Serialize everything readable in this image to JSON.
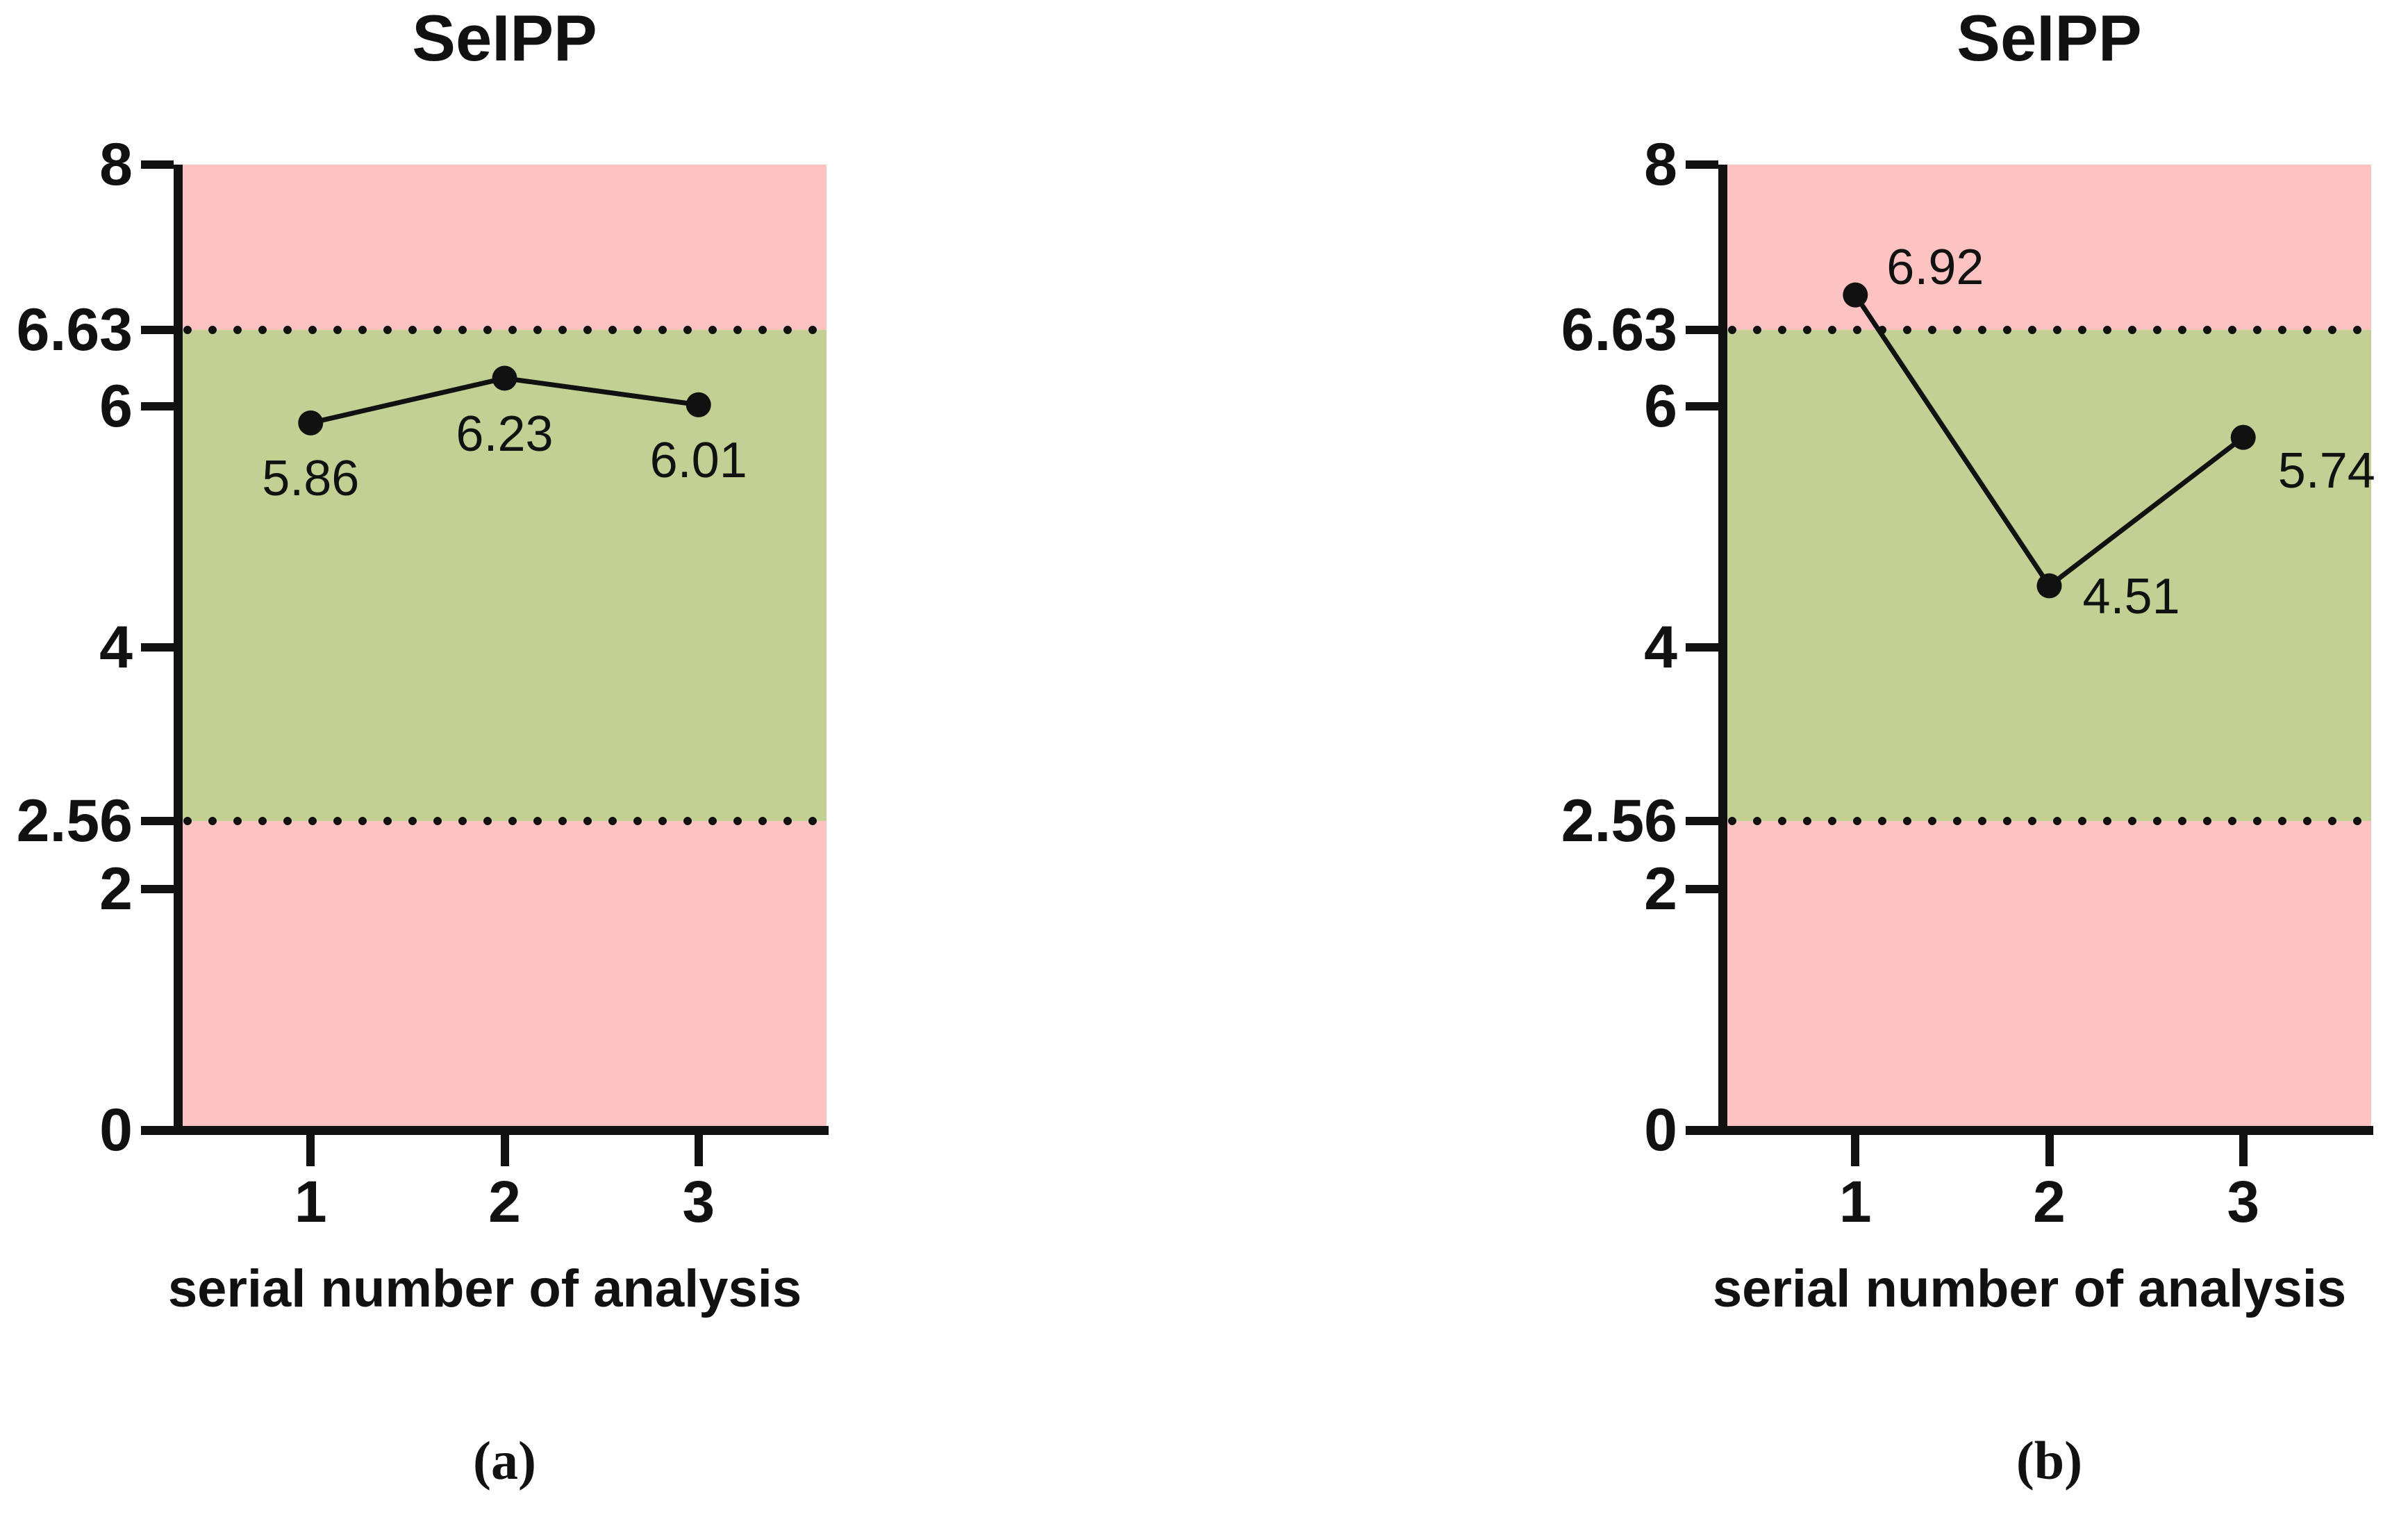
{
  "chart_data": [
    {
      "type": "line",
      "title": "SeIPP",
      "xlabel": "serial number of analysis",
      "panel_label": "(a)",
      "x": [
        1,
        2,
        3
      ],
      "x_tick_labels": [
        "1",
        "2",
        "3"
      ],
      "values": [
        5.86,
        6.23,
        6.01
      ],
      "point_labels": [
        "5.86",
        "6.23",
        "6.01"
      ],
      "xlim": [
        0.34,
        3.66
      ],
      "ylim": [
        0,
        8
      ],
      "yticks": [
        0,
        2,
        2.56,
        4,
        6,
        6.63,
        8
      ],
      "ytick_labels": [
        "0",
        "2",
        "2.56",
        "4",
        "6",
        "6.63",
        "8"
      ],
      "control_limits": {
        "lower": 2.56,
        "upper": 6.63
      },
      "colors": {
        "in_range_band": "#c2d193",
        "out_of_range_band": "#fdc3c3",
        "line": "#111111",
        "marker": "#111111",
        "limit_dots": "#111111"
      },
      "grid": false,
      "legend": null
    },
    {
      "type": "line",
      "title": "SeIPP",
      "xlabel": "serial number of analysis",
      "panel_label": "(b)",
      "x": [
        1,
        2,
        3
      ],
      "x_tick_labels": [
        "1",
        "2",
        "3"
      ],
      "values": [
        6.92,
        4.51,
        5.74
      ],
      "point_labels": [
        "6.92",
        "4.51",
        "5.74"
      ],
      "xlim": [
        0.34,
        3.66
      ],
      "ylim": [
        0,
        8
      ],
      "yticks": [
        0,
        2,
        2.56,
        4,
        6,
        6.63,
        8
      ],
      "ytick_labels": [
        "0",
        "2",
        "2.56",
        "4",
        "6",
        "6.63",
        "8"
      ],
      "control_limits": {
        "lower": 2.56,
        "upper": 6.63
      },
      "colors": {
        "in_range_band": "#c2d193",
        "out_of_range_band": "#fdc3c3",
        "line": "#111111",
        "marker": "#111111",
        "limit_dots": "#111111"
      },
      "grid": false,
      "legend": null
    }
  ]
}
